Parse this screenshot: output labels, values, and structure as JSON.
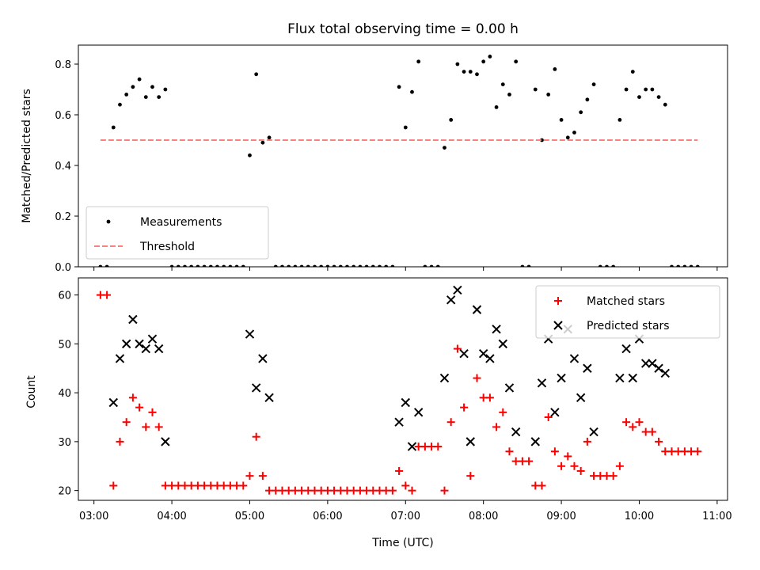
{
  "chart_data": [
    {
      "type": "scatter",
      "title": "Flux total observing time = 0.00 h",
      "xlabel": "",
      "ylabel": "Matched/Predicted stars",
      "xlim": [
        "02:48",
        "11:08"
      ],
      "ylim": [
        0,
        0.875
      ],
      "yticks": [
        0.0,
        0.2,
        0.4,
        0.6,
        0.8
      ],
      "ytick_labels": [
        "0.0",
        "0.2",
        "0.4",
        "0.6",
        "0.8"
      ],
      "grid": false,
      "legend_position": "lower-left",
      "series": [
        {
          "name": "Measurements",
          "marker": "dot",
          "color": "#000000",
          "points": [
            [
              "03:05",
              0
            ],
            [
              "03:10",
              0
            ],
            [
              "03:15",
              0.55
            ],
            [
              "03:20",
              0.64
            ],
            [
              "03:25",
              0.68
            ],
            [
              "03:30",
              0.71
            ],
            [
              "03:35",
              0.74
            ],
            [
              "03:40",
              0.67
            ],
            [
              "03:45",
              0.71
            ],
            [
              "03:50",
              0.67
            ],
            [
              "03:55",
              0.7
            ],
            [
              "04:00",
              0
            ],
            [
              "04:05",
              0
            ],
            [
              "04:10",
              0
            ],
            [
              "04:15",
              0
            ],
            [
              "04:20",
              0
            ],
            [
              "04:25",
              0
            ],
            [
              "04:30",
              0
            ],
            [
              "04:35",
              0
            ],
            [
              "04:40",
              0
            ],
            [
              "04:45",
              0
            ],
            [
              "04:50",
              0
            ],
            [
              "04:55",
              0
            ],
            [
              "05:00",
              0.44
            ],
            [
              "05:05",
              0.76
            ],
            [
              "05:10",
              0.49
            ],
            [
              "05:15",
              0.51
            ],
            [
              "05:20",
              0
            ],
            [
              "05:25",
              0
            ],
            [
              "05:30",
              0
            ],
            [
              "05:35",
              0
            ],
            [
              "05:40",
              0
            ],
            [
              "05:45",
              0
            ],
            [
              "05:50",
              0
            ],
            [
              "05:55",
              0
            ],
            [
              "06:00",
              0
            ],
            [
              "06:05",
              0
            ],
            [
              "06:10",
              0
            ],
            [
              "06:15",
              0
            ],
            [
              "06:20",
              0
            ],
            [
              "06:25",
              0
            ],
            [
              "06:30",
              0
            ],
            [
              "06:35",
              0
            ],
            [
              "06:40",
              0
            ],
            [
              "06:45",
              0
            ],
            [
              "06:50",
              0
            ],
            [
              "06:55",
              0.71
            ],
            [
              "07:00",
              0.55
            ],
            [
              "07:05",
              0.69
            ],
            [
              "07:10",
              0.81
            ],
            [
              "07:15",
              0
            ],
            [
              "07:20",
              0
            ],
            [
              "07:25",
              0
            ],
            [
              "07:30",
              0.47
            ],
            [
              "07:35",
              0.58
            ],
            [
              "07:40",
              0.8
            ],
            [
              "07:45",
              0.77
            ],
            [
              "07:50",
              0.77
            ],
            [
              "07:55",
              0.76
            ],
            [
              "08:00",
              0.81
            ],
            [
              "08:05",
              0.83
            ],
            [
              "08:10",
              0.63
            ],
            [
              "08:15",
              0.72
            ],
            [
              "08:20",
              0.68
            ],
            [
              "08:25",
              0.81
            ],
            [
              "08:30",
              0
            ],
            [
              "08:35",
              0
            ],
            [
              "08:40",
              0.7
            ],
            [
              "08:45",
              0.5
            ],
            [
              "08:50",
              0.68
            ],
            [
              "08:55",
              0.78
            ],
            [
              "09:00",
              0.58
            ],
            [
              "09:05",
              0.51
            ],
            [
              "09:10",
              0.53
            ],
            [
              "09:15",
              0.61
            ],
            [
              "09:20",
              0.66
            ],
            [
              "09:25",
              0.72
            ],
            [
              "09:30",
              0
            ],
            [
              "09:35",
              0
            ],
            [
              "09:40",
              0
            ],
            [
              "09:45",
              0.58
            ],
            [
              "09:50",
              0.7
            ],
            [
              "09:55",
              0.77
            ],
            [
              "10:00",
              0.67
            ],
            [
              "10:05",
              0.7
            ],
            [
              "10:10",
              0.7
            ],
            [
              "10:15",
              0.67
            ],
            [
              "10:20",
              0.64
            ],
            [
              "10:25",
              0
            ],
            [
              "10:30",
              0
            ],
            [
              "10:35",
              0
            ],
            [
              "10:40",
              0
            ],
            [
              "10:45",
              0
            ]
          ]
        },
        {
          "name": "Threshold",
          "marker": "dashed-line",
          "color": "#ff7f7f",
          "points": [
            [
              "03:05",
              0.5
            ],
            [
              "10:45",
              0.5
            ]
          ]
        }
      ]
    },
    {
      "type": "scatter",
      "title": "",
      "xlabel": "Time (UTC)",
      "ylabel": "Count",
      "xlim": [
        "02:48",
        "11:08"
      ],
      "ylim": [
        18,
        63.5
      ],
      "yticks": [
        20,
        30,
        40,
        50,
        60
      ],
      "ytick_labels": [
        "20",
        "30",
        "40",
        "50",
        "60"
      ],
      "xticks": [
        "03:00",
        "04:00",
        "05:00",
        "06:00",
        "07:00",
        "08:00",
        "09:00",
        "10:00",
        "11:00"
      ],
      "xtick_labels": [
        "03:00",
        "04:00",
        "05:00",
        "06:00",
        "07:00",
        "08:00",
        "09:00",
        "10:00",
        "11:00"
      ],
      "grid": false,
      "legend_position": "upper-right",
      "series": [
        {
          "name": "Matched stars",
          "marker": "plus",
          "color": "#ff0000",
          "points": [
            [
              "03:05",
              60
            ],
            [
              "03:10",
              60
            ],
            [
              "03:15",
              21
            ],
            [
              "03:20",
              30
            ],
            [
              "03:25",
              34
            ],
            [
              "03:30",
              39
            ],
            [
              "03:35",
              37
            ],
            [
              "03:40",
              33
            ],
            [
              "03:45",
              36
            ],
            [
              "03:50",
              33
            ],
            [
              "03:55",
              21
            ],
            [
              "04:00",
              21
            ],
            [
              "04:05",
              21
            ],
            [
              "04:10",
              21
            ],
            [
              "04:15",
              21
            ],
            [
              "04:20",
              21
            ],
            [
              "04:25",
              21
            ],
            [
              "04:30",
              21
            ],
            [
              "04:35",
              21
            ],
            [
              "04:40",
              21
            ],
            [
              "04:45",
              21
            ],
            [
              "04:50",
              21
            ],
            [
              "04:55",
              21
            ],
            [
              "05:00",
              23
            ],
            [
              "05:05",
              31
            ],
            [
              "05:10",
              23
            ],
            [
              "05:15",
              20
            ],
            [
              "05:20",
              20
            ],
            [
              "05:25",
              20
            ],
            [
              "05:30",
              20
            ],
            [
              "05:35",
              20
            ],
            [
              "05:40",
              20
            ],
            [
              "05:45",
              20
            ],
            [
              "05:50",
              20
            ],
            [
              "05:55",
              20
            ],
            [
              "06:00",
              20
            ],
            [
              "06:05",
              20
            ],
            [
              "06:10",
              20
            ],
            [
              "06:15",
              20
            ],
            [
              "06:20",
              20
            ],
            [
              "06:25",
              20
            ],
            [
              "06:30",
              20
            ],
            [
              "06:35",
              20
            ],
            [
              "06:40",
              20
            ],
            [
              "06:45",
              20
            ],
            [
              "06:50",
              20
            ],
            [
              "06:55",
              24
            ],
            [
              "07:00",
              21
            ],
            [
              "07:05",
              20
            ],
            [
              "07:10",
              29
            ],
            [
              "07:15",
              29
            ],
            [
              "07:20",
              29
            ],
            [
              "07:25",
              29
            ],
            [
              "07:30",
              20
            ],
            [
              "07:35",
              34
            ],
            [
              "07:40",
              49
            ],
            [
              "07:45",
              37
            ],
            [
              "07:50",
              23
            ],
            [
              "07:55",
              43
            ],
            [
              "08:00",
              39
            ],
            [
              "08:05",
              39
            ],
            [
              "08:10",
              33
            ],
            [
              "08:15",
              36
            ],
            [
              "08:20",
              28
            ],
            [
              "08:25",
              26
            ],
            [
              "08:30",
              26
            ],
            [
              "08:35",
              26
            ],
            [
              "08:40",
              21
            ],
            [
              "08:45",
              21
            ],
            [
              "08:50",
              35
            ],
            [
              "08:55",
              28
            ],
            [
              "09:00",
              25
            ],
            [
              "09:05",
              27
            ],
            [
              "09:10",
              25
            ],
            [
              "09:15",
              24
            ],
            [
              "09:20",
              30
            ],
            [
              "09:25",
              23
            ],
            [
              "09:30",
              23
            ],
            [
              "09:35",
              23
            ],
            [
              "09:40",
              23
            ],
            [
              "09:45",
              25
            ],
            [
              "09:50",
              34
            ],
            [
              "09:55",
              33
            ],
            [
              "10:00",
              34
            ],
            [
              "10:05",
              32
            ],
            [
              "10:10",
              32
            ],
            [
              "10:15",
              30
            ],
            [
              "10:20",
              28
            ],
            [
              "10:25",
              28
            ],
            [
              "10:30",
              28
            ],
            [
              "10:35",
              28
            ],
            [
              "10:40",
              28
            ],
            [
              "10:45",
              28
            ]
          ]
        },
        {
          "name": "Predicted stars",
          "marker": "x",
          "color": "#000000",
          "points": [
            [
              "03:15",
              38
            ],
            [
              "03:20",
              47
            ],
            [
              "03:25",
              50
            ],
            [
              "03:30",
              55
            ],
            [
              "03:35",
              50
            ],
            [
              "03:40",
              49
            ],
            [
              "03:45",
              51
            ],
            [
              "03:50",
              49
            ],
            [
              "03:55",
              30
            ],
            [
              "05:00",
              52
            ],
            [
              "05:05",
              41
            ],
            [
              "05:10",
              47
            ],
            [
              "05:15",
              39
            ],
            [
              "06:55",
              34
            ],
            [
              "07:00",
              38
            ],
            [
              "07:05",
              29
            ],
            [
              "07:10",
              36
            ],
            [
              "07:30",
              43
            ],
            [
              "07:35",
              59
            ],
            [
              "07:40",
              61
            ],
            [
              "07:45",
              48
            ],
            [
              "07:50",
              30
            ],
            [
              "07:55",
              57
            ],
            [
              "08:00",
              48
            ],
            [
              "08:05",
              47
            ],
            [
              "08:10",
              53
            ],
            [
              "08:15",
              50
            ],
            [
              "08:20",
              41
            ],
            [
              "08:25",
              32
            ],
            [
              "08:40",
              30
            ],
            [
              "08:45",
              42
            ],
            [
              "08:50",
              51
            ],
            [
              "08:55",
              36
            ],
            [
              "09:00",
              43
            ],
            [
              "09:05",
              53
            ],
            [
              "09:10",
              47
            ],
            [
              "09:15",
              39
            ],
            [
              "09:20",
              45
            ],
            [
              "09:25",
              32
            ],
            [
              "09:45",
              43
            ],
            [
              "09:50",
              49
            ],
            [
              "09:55",
              43
            ],
            [
              "10:00",
              51
            ],
            [
              "10:05",
              46
            ],
            [
              "10:10",
              46
            ],
            [
              "10:15",
              45
            ],
            [
              "10:20",
              44
            ]
          ]
        }
      ]
    }
  ]
}
